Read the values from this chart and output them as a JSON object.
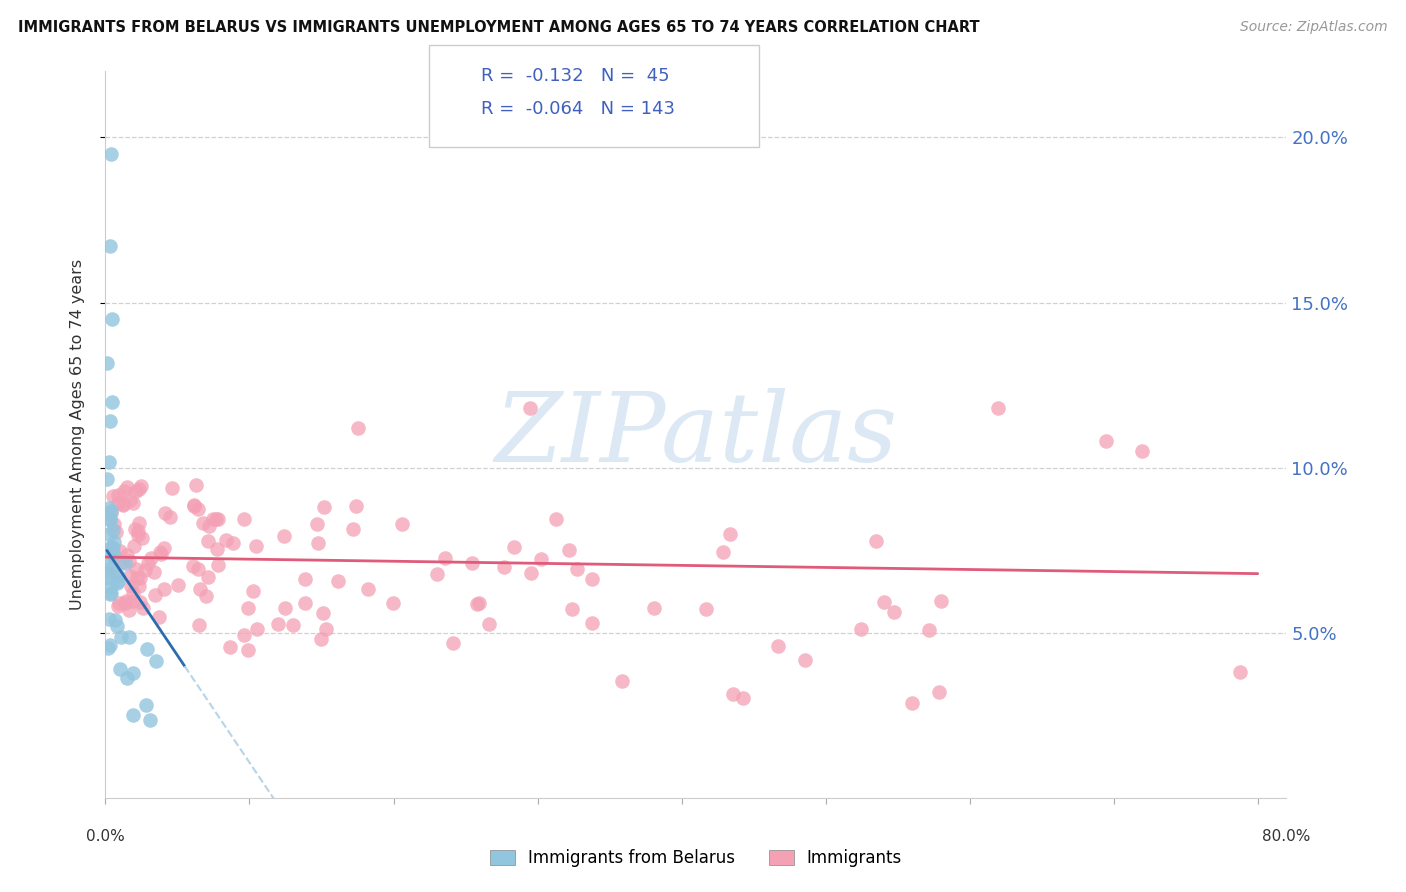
{
  "title": "IMMIGRANTS FROM BELARUS VS IMMIGRANTS UNEMPLOYMENT AMONG AGES 65 TO 74 YEARS CORRELATION CHART",
  "source": "Source: ZipAtlas.com",
  "ylabel": "Unemployment Among Ages 65 to 74 years",
  "xlim": [
    0.0,
    0.82
  ],
  "ylim": [
    0.0,
    0.22
  ],
  "ytick_vals": [
    0.05,
    0.1,
    0.15,
    0.2
  ],
  "ytick_labels": [
    "5.0%",
    "10.0%",
    "15.0%",
    "20.0%"
  ],
  "color_blue": "#92c5de",
  "color_pink": "#f4a0b5",
  "color_blue_line": "#2b6cb0",
  "color_pink_line": "#e05a7a",
  "color_blue_dash": "#b8d4e8",
  "watermark_color": "#dce9f5",
  "legend_v1": "-0.132",
  "legend_nv1": "45",
  "legend_v2": "-0.064",
  "legend_nv2": "143",
  "legend_text_color": "#4060c0"
}
